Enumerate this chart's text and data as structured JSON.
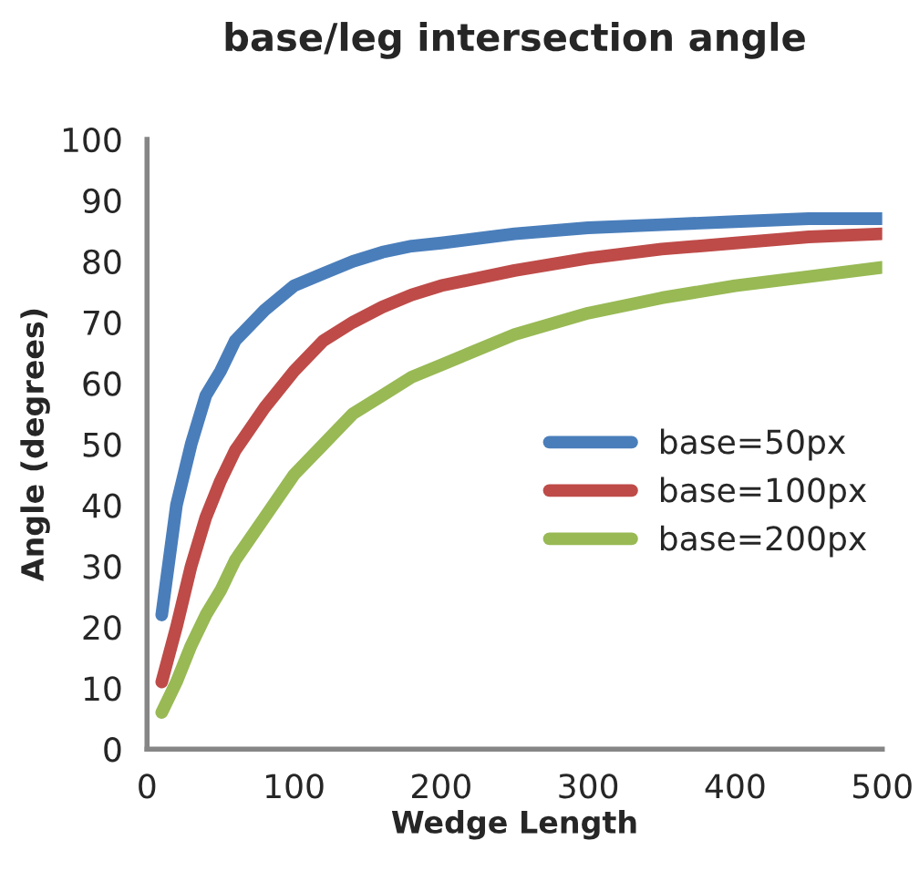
{
  "chart_data": {
    "type": "line",
    "title": "base/leg intersection angle",
    "xlabel": "Wedge Length",
    "ylabel": "Angle (degrees)",
    "x": [
      10,
      20,
      30,
      40,
      50,
      60,
      80,
      100,
      120,
      140,
      160,
      180,
      200,
      250,
      300,
      350,
      400,
      450,
      500
    ],
    "series": [
      {
        "name": "base=50px",
        "color": "#4a7ebb",
        "values": [
          22,
          40,
          50,
          58,
          62,
          67,
          72,
          76,
          78,
          80,
          81.5,
          82.5,
          83,
          84.5,
          85.5,
          86,
          86.5,
          87,
          87
        ]
      },
      {
        "name": "base=100px",
        "color": "#be4b48",
        "values": [
          11,
          20,
          30,
          38,
          44,
          49,
          56,
          62,
          67,
          70,
          72.5,
          74.5,
          76,
          78.5,
          80.5,
          82,
          83,
          84,
          84.5
        ]
      },
      {
        "name": "base=200px",
        "color": "#98b954",
        "values": [
          6,
          11,
          17,
          22,
          26,
          31,
          38,
          45,
          50,
          55,
          58,
          61,
          63,
          68,
          71.5,
          74,
          76,
          77.5,
          79
        ]
      }
    ],
    "xlim": [
      0,
      500
    ],
    "xticks": [
      0,
      100,
      200,
      300,
      400,
      500
    ],
    "ylim": [
      0,
      100
    ],
    "yticks": [
      0,
      10,
      20,
      30,
      40,
      50,
      60,
      70,
      80,
      90,
      100
    ],
    "grid": false,
    "legend": "right",
    "marker": "none",
    "line_style": "solid"
  }
}
